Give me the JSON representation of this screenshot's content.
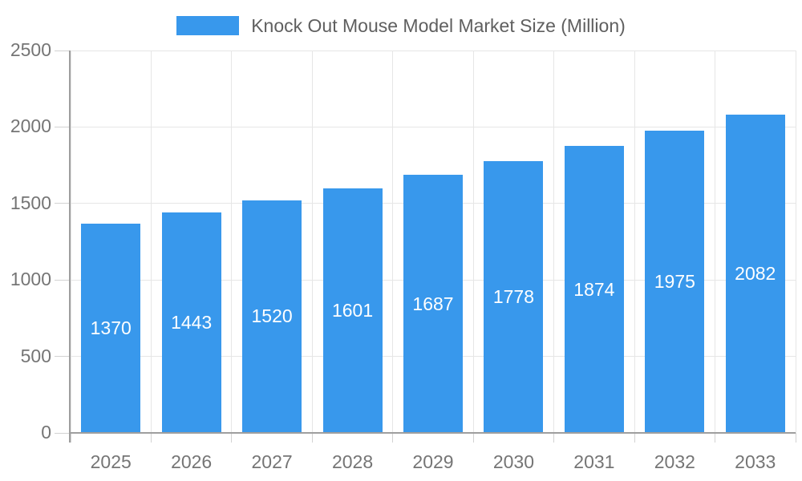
{
  "legend": {
    "label": "Knock Out Mouse Model Market Size (Million)"
  },
  "chart_data": {
    "type": "bar",
    "title": "Knock Out Mouse Model Market Size (Million)",
    "series_name": "Knock Out Mouse Model Market Size (Million)",
    "categories": [
      "2025",
      "2026",
      "2027",
      "2028",
      "2029",
      "2030",
      "2031",
      "2032",
      "2033"
    ],
    "values": [
      1370,
      1443,
      1520,
      1601,
      1687,
      1778,
      1874,
      1975,
      2082
    ],
    "xlabel": "",
    "ylabel": "",
    "ylim": [
      0,
      2500
    ],
    "yticks": [
      0,
      500,
      1000,
      1500,
      2000,
      2500
    ],
    "grid": true,
    "legend_position": "top",
    "value_label_position": "inside-center"
  },
  "colors": {
    "bar": "#3898EC",
    "grid": "#e6e6e6",
    "tick": "#d2d2d2",
    "axis": "#9e9e9e",
    "axis_label": "#757575",
    "legend_text": "#5f5f5f",
    "value_label": "#ffffff",
    "background": "#ffffff"
  }
}
